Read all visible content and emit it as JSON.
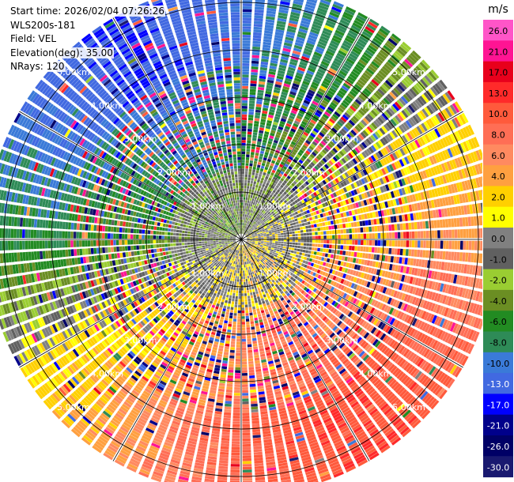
{
  "header": {
    "start_time": "Start time: 2026/02/04 07:26:26",
    "site": "WLS200s-181",
    "field": "Field: VEL",
    "elevation": "Elevation(deg): 35.00",
    "nrays": "NRays: 120"
  },
  "colorbar": {
    "unit": "m/s",
    "ticks": [
      "26.0",
      "21.0",
      "17.0",
      "13.0",
      "10.0",
      "8.0",
      "6.0",
      "4.0",
      "2.0",
      "1.0",
      "0.0",
      "-1.0",
      "-2.0",
      "-4.0",
      "-6.0",
      "-8.0",
      "-10.0",
      "-13.0",
      "-17.0",
      "-21.0",
      "-26.0",
      "-30.0"
    ],
    "colors": [
      "#ff55c8",
      "#ff1493",
      "#e8001c",
      "#ff2a2a",
      "#ff5a3c",
      "#ff6e55",
      "#ff8a60",
      "#ffa040",
      "#ffd000",
      "#ffff00",
      "#808080",
      "#606060",
      "#9acd32",
      "#6b8e23",
      "#228b22",
      "#2e8b57",
      "#3a7ad8",
      "#4169e1",
      "#0000ff",
      "#00008b",
      "#000066",
      "#191970"
    ],
    "tick_color_text_dark": true
  },
  "chart_data": {
    "type": "heatmap",
    "projection": "polar-ppi",
    "field": "VEL",
    "units": "m/s",
    "nrays": 120,
    "elevation_deg": 35.0,
    "range_rings_km": [
      1.0,
      2.0,
      3.0,
      4.0,
      5.0
    ],
    "ring_labels": [
      "1.00km",
      "2.00km",
      "3.00km",
      "4.00km",
      "5.00km"
    ],
    "max_range_km": 5.4,
    "color_levels": [
      -30.0,
      -26.0,
      -21.0,
      -17.0,
      -13.0,
      -10.0,
      -8.0,
      -6.0,
      -4.0,
      -2.0,
      -1.0,
      0.0,
      1.0,
      2.0,
      4.0,
      6.0,
      8.0,
      10.0,
      13.0,
      17.0,
      21.0,
      26.0
    ],
    "sector_velocity_summary": [
      {
        "azimuth_deg": 0,
        "far_range_velocity": -10.0
      },
      {
        "azimuth_deg": 30,
        "far_range_velocity": -6.0
      },
      {
        "azimuth_deg": 60,
        "far_range_velocity": 2.0
      },
      {
        "azimuth_deg": 90,
        "far_range_velocity": 6.0
      },
      {
        "azimuth_deg": 120,
        "far_range_velocity": 10.0
      },
      {
        "azimuth_deg": 150,
        "far_range_velocity": 13.0
      },
      {
        "azimuth_deg": 180,
        "far_range_velocity": 10.0
      },
      {
        "azimuth_deg": 210,
        "far_range_velocity": 6.0
      },
      {
        "azimuth_deg": 240,
        "far_range_velocity": 2.0
      },
      {
        "azimuth_deg": 270,
        "far_range_velocity": -6.0
      },
      {
        "azimuth_deg": 300,
        "far_range_velocity": -10.0
      },
      {
        "azimuth_deg": 330,
        "far_range_velocity": -13.0
      }
    ]
  }
}
